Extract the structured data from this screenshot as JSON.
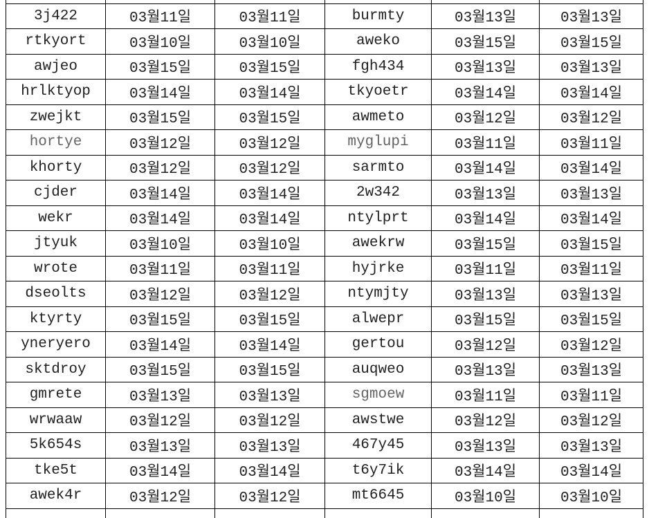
{
  "table": {
    "description": "Spreadsheet-style grid of record IDs with Korean month/day dates (MM월DD일), two ID columns each followed by two identical date columns; header row cut off at top of screenshot",
    "rows": [
      [
        "3j422",
        "03월11일",
        "03월11일",
        "burmty",
        "03월13일",
        "03월13일"
      ],
      [
        "rtkyort",
        "03월10일",
        "03월10일",
        "aweko",
        "03월15일",
        "03월15일"
      ],
      [
        "awjeo",
        "03월15일",
        "03월15일",
        "fgh434",
        "03월13일",
        "03월13일"
      ],
      [
        "hrlktyop",
        "03월14일",
        "03월14일",
        "tkyoetr",
        "03월14일",
        "03월14일"
      ],
      [
        "zwejkt",
        "03월15일",
        "03월15일",
        "awmeto",
        "03월12일",
        "03월12일"
      ],
      [
        "hortye",
        "03월12일",
        "03월12일",
        "myglupi",
        "03월11일",
        "03월11일"
      ],
      [
        "khorty",
        "03월12일",
        "03월12일",
        "sarmto",
        "03월14일",
        "03월14일"
      ],
      [
        "cjder",
        "03월14일",
        "03월14일",
        "2w342",
        "03월13일",
        "03월13일"
      ],
      [
        "wekr",
        "03월14일",
        "03월14일",
        "ntylprt",
        "03월14일",
        "03월14일"
      ],
      [
        "jtyuk",
        "03월10일",
        "03월10일",
        "awekrw",
        "03월15일",
        "03월15일"
      ],
      [
        "wrote",
        "03월11일",
        "03월11일",
        "hyjrke",
        "03월11일",
        "03월11일"
      ],
      [
        "dseolts",
        "03월12일",
        "03월12일",
        "ntymjty",
        "03월13일",
        "03월13일"
      ],
      [
        "ktyrty",
        "03월15일",
        "03월15일",
        "alwepr",
        "03월15일",
        "03월15일"
      ],
      [
        "yneryero",
        "03월14일",
        "03월14일",
        "gertou",
        "03월12일",
        "03월12일"
      ],
      [
        "sktdroy",
        "03월15일",
        "03월15일",
        "auqweo",
        "03월13일",
        "03월13일"
      ],
      [
        "gmrete",
        "03월13일",
        "03월13일",
        "sgmoew",
        "03월11일",
        "03월11일"
      ],
      [
        "wrwaaw",
        "03월12일",
        "03월12일",
        "awstwe",
        "03월12일",
        "03월12일"
      ],
      [
        "5k654s",
        "03월13일",
        "03월13일",
        "467y45",
        "03월13일",
        "03월13일"
      ],
      [
        "tke5t",
        "03월14일",
        "03월14일",
        "t6y7ik",
        "03월14일",
        "03월14일"
      ],
      [
        "awek4r",
        "03월12일",
        "03월12일",
        "mt6645",
        "03월10일",
        "03월10일"
      ]
    ],
    "muted_cells": [
      [
        5,
        0
      ],
      [
        5,
        3
      ],
      [
        15,
        3
      ]
    ]
  },
  "colors": {
    "text": "#1f1f1f",
    "muted": "#636363",
    "border": "#000000",
    "background": "#ffffff"
  }
}
